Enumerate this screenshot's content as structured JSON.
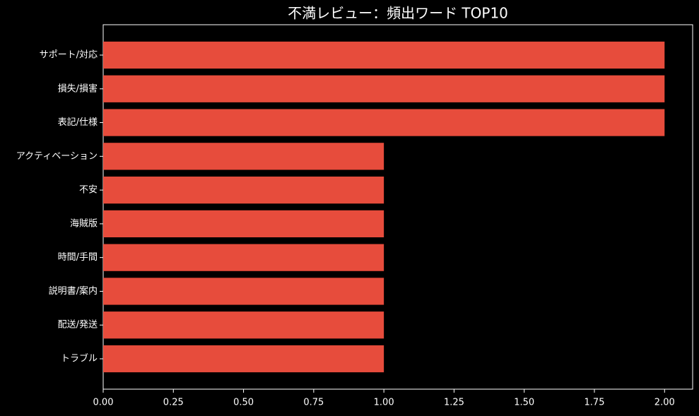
{
  "chart_data": {
    "type": "barh",
    "title": "不満レビュー：頻出ワード TOP10",
    "categories": [
      "サポート/対応",
      "損失/損害",
      "表記/仕様",
      "アクティベーション",
      "不安",
      "海賊版",
      "時間/手間",
      "説明書/案内",
      "配送/発送",
      "トラブル"
    ],
    "values": [
      2,
      2,
      2,
      1,
      1,
      1,
      1,
      1,
      1,
      1
    ],
    "color": "#e74c3c",
    "xlim": [
      0,
      2.1
    ],
    "xticks": [
      {
        "value": 0,
        "label": "0.00"
      },
      {
        "value": 0.25,
        "label": "0.25"
      },
      {
        "value": 0.5,
        "label": "0.50"
      },
      {
        "value": 0.75,
        "label": "0.75"
      },
      {
        "value": 1,
        "label": "1.00"
      },
      {
        "value": 1.25,
        "label": "1.25"
      },
      {
        "value": 1.5,
        "label": "1.50"
      },
      {
        "value": 1.75,
        "label": "1.75"
      },
      {
        "value": 2,
        "label": "2.00"
      }
    ],
    "grid": false
  }
}
